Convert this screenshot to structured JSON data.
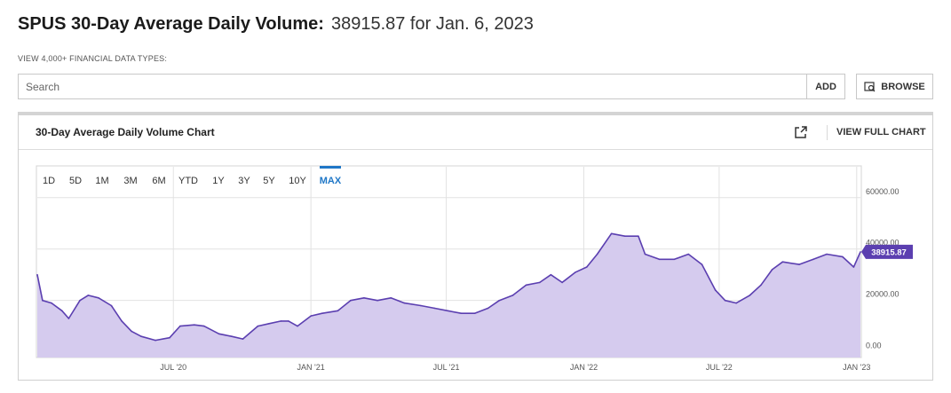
{
  "header": {
    "title_label": "SPUS 30-Day Average Daily Volume:",
    "title_value": "38915.87 for Jan. 6, 2023",
    "subnote": "VIEW 4,000+ FINANCIAL DATA TYPES:"
  },
  "search": {
    "placeholder": "Search",
    "value": "",
    "add_label": "ADD",
    "browse_label": "BROWSE"
  },
  "panel": {
    "title": "30-Day Average Daily Volume Chart",
    "view_full_label": "VIEW FULL CHART"
  },
  "ranges": [
    {
      "label": "1D",
      "active": false
    },
    {
      "label": "5D",
      "active": false
    },
    {
      "label": "1M",
      "active": false
    },
    {
      "label": "3M",
      "active": false
    },
    {
      "label": "6M",
      "active": false
    },
    {
      "label": "YTD",
      "active": false
    },
    {
      "label": "1Y",
      "active": false
    },
    {
      "label": "3Y",
      "active": false
    },
    {
      "label": "5Y",
      "active": false
    },
    {
      "label": "10Y",
      "active": false
    },
    {
      "label": "MAX",
      "active": true
    }
  ],
  "colors": {
    "fill": "#d5cbee",
    "line": "#5b3fb0",
    "accent": "#1f77c7",
    "badge": "#5b3fb0",
    "grid": "#e2e2e2"
  },
  "icons": {
    "browse": "browse-icon",
    "external": "external-link-icon"
  },
  "chart_data": {
    "type": "area",
    "title": "",
    "xlabel": "",
    "ylabel": "",
    "ylim": [
      -2200,
      72000
    ],
    "xlim": [
      "2020-01-01",
      "2023-01-06"
    ],
    "y_ticks": [
      0,
      20000,
      40000,
      60000
    ],
    "y_tick_labels": [
      "0.00",
      "20000.00",
      "40000.00",
      "60000.00"
    ],
    "x_ticks": [
      "2020-07-01",
      "2021-01-01",
      "2021-07-01",
      "2022-01-01",
      "2022-07-01",
      "2023-01-01"
    ],
    "x_tick_labels": [
      "JUL '20",
      "JAN '21",
      "JUL '21",
      "JAN '22",
      "JUL '22",
      "JAN '23"
    ],
    "last_value_label": "38915.87",
    "grid": true,
    "series": [
      {
        "values": [
          [
            "2020-01-01",
            30000
          ],
          [
            "2020-01-08",
            20000
          ],
          [
            "2020-01-20",
            19000
          ],
          [
            "2020-02-03",
            16000
          ],
          [
            "2020-02-12",
            13000
          ],
          [
            "2020-02-27",
            20000
          ],
          [
            "2020-03-09",
            22000
          ],
          [
            "2020-03-23",
            21000
          ],
          [
            "2020-04-09",
            18000
          ],
          [
            "2020-04-23",
            12000
          ],
          [
            "2020-05-06",
            8000
          ],
          [
            "2020-05-19",
            6000
          ],
          [
            "2020-06-07",
            4500
          ],
          [
            "2020-06-26",
            5500
          ],
          [
            "2020-07-10",
            10000
          ],
          [
            "2020-07-29",
            10500
          ],
          [
            "2020-08-11",
            10000
          ],
          [
            "2020-08-31",
            7000
          ],
          [
            "2020-09-17",
            6000
          ],
          [
            "2020-10-02",
            5000
          ],
          [
            "2020-10-22",
            10000
          ],
          [
            "2020-11-06",
            11000
          ],
          [
            "2020-11-22",
            12000
          ],
          [
            "2020-12-02",
            12000
          ],
          [
            "2020-12-14",
            10000
          ],
          [
            "2021-01-01",
            14000
          ],
          [
            "2021-01-16",
            15000
          ],
          [
            "2021-02-06",
            16000
          ],
          [
            "2021-02-23",
            20000
          ],
          [
            "2021-03-13",
            21000
          ],
          [
            "2021-03-31",
            20000
          ],
          [
            "2021-04-18",
            21000
          ],
          [
            "2021-05-06",
            19000
          ],
          [
            "2021-05-28",
            18000
          ],
          [
            "2021-06-15",
            17000
          ],
          [
            "2021-07-03",
            16000
          ],
          [
            "2021-07-21",
            15000
          ],
          [
            "2021-08-08",
            15000
          ],
          [
            "2021-08-26",
            17000
          ],
          [
            "2021-09-10",
            20000
          ],
          [
            "2021-09-28",
            22000
          ],
          [
            "2021-10-16",
            26000
          ],
          [
            "2021-11-03",
            27000
          ],
          [
            "2021-11-18",
            30000
          ],
          [
            "2021-12-03",
            27000
          ],
          [
            "2021-12-21",
            31000
          ],
          [
            "2022-01-05",
            33000
          ],
          [
            "2022-01-19",
            38000
          ],
          [
            "2022-02-07",
            46000
          ],
          [
            "2022-02-25",
            45000
          ],
          [
            "2022-03-15",
            45000
          ],
          [
            "2022-03-24",
            38000
          ],
          [
            "2022-04-12",
            36000
          ],
          [
            "2022-05-02",
            36000
          ],
          [
            "2022-05-21",
            38000
          ],
          [
            "2022-06-08",
            34000
          ],
          [
            "2022-06-26",
            24000
          ],
          [
            "2022-07-09",
            20000
          ],
          [
            "2022-07-24",
            19000
          ],
          [
            "2022-08-11",
            22000
          ],
          [
            "2022-08-26",
            26000
          ],
          [
            "2022-09-10",
            32000
          ],
          [
            "2022-09-24",
            35000
          ],
          [
            "2022-10-16",
            34000
          ],
          [
            "2022-11-04",
            36000
          ],
          [
            "2022-11-22",
            38000
          ],
          [
            "2022-12-13",
            37000
          ],
          [
            "2022-12-28",
            33000
          ],
          [
            "2023-01-06",
            38915.87
          ]
        ]
      }
    ]
  }
}
